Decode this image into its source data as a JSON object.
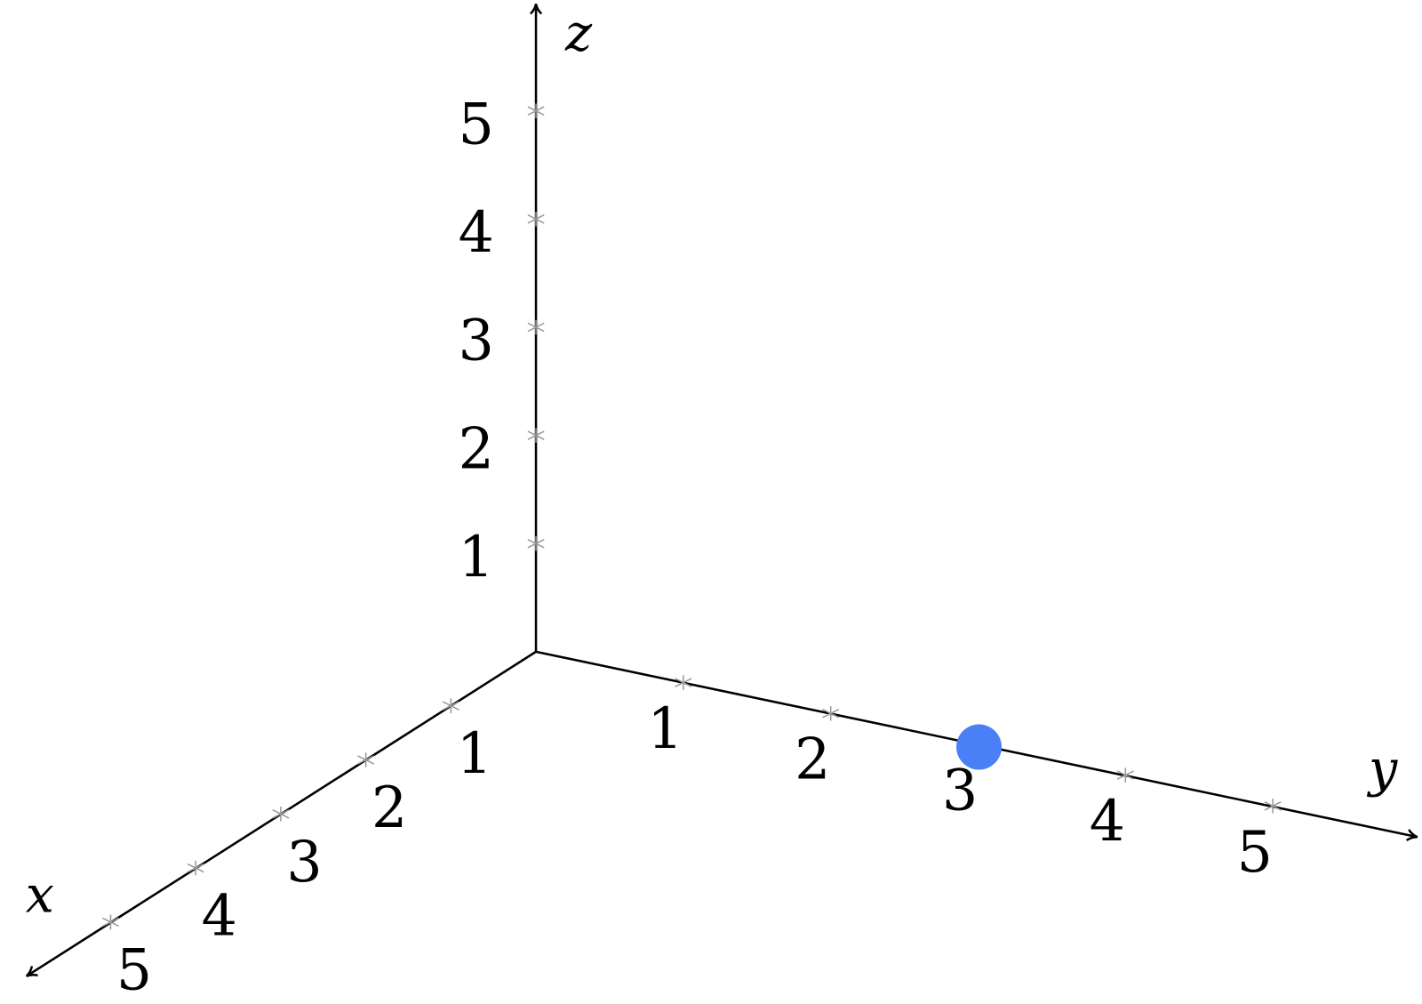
{
  "chart_data": {
    "type": "scatter3d",
    "axes": {
      "x": {
        "label": "x",
        "ticks": [
          1,
          2,
          3,
          4,
          5
        ],
        "range": [
          0,
          5.9
        ]
      },
      "y": {
        "label": "y",
        "ticks": [
          1,
          2,
          3,
          4,
          5
        ],
        "range": [
          0,
          5.9
        ]
      },
      "z": {
        "label": "z",
        "ticks": [
          1,
          2,
          3,
          4,
          5
        ],
        "range": [
          0,
          5.9
        ]
      }
    },
    "points": [
      {
        "x": 0,
        "y": 3,
        "z": 0,
        "color": "#4a80f5"
      }
    ],
    "grid": false,
    "axis_color": "#000000",
    "tick_color": "#999999"
  }
}
